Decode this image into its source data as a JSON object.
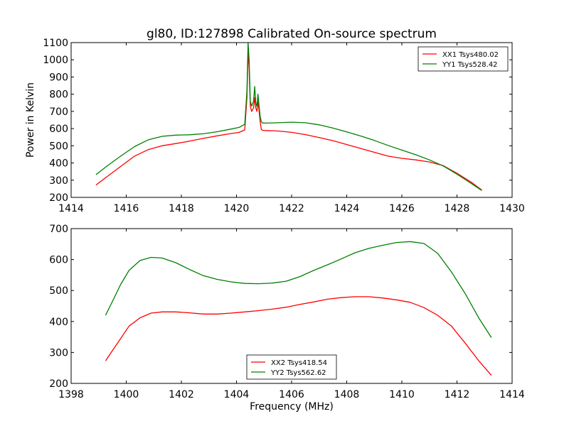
{
  "chart_data": [
    {
      "type": "line",
      "title": "gl80, ID:127898 Calibrated On-source spectrum",
      "xlabel": "",
      "ylabel": "Power in Kelvin",
      "xlim": [
        1414,
        1430
      ],
      "ylim": [
        200,
        1100
      ],
      "xticks": [
        1414,
        1416,
        1418,
        1420,
        1422,
        1424,
        1426,
        1428,
        1430
      ],
      "yticks": [
        200,
        300,
        400,
        500,
        600,
        700,
        800,
        900,
        1000,
        1100
      ],
      "grid": false,
      "legend_position": "top-right",
      "series": [
        {
          "name": "XX1 Tsys480.02",
          "color": "#ff0000",
          "x": [
            1414.9,
            1415.3,
            1415.8,
            1416.3,
            1416.8,
            1417.3,
            1417.8,
            1418.3,
            1418.8,
            1419.3,
            1419.8,
            1420.1,
            1420.3,
            1420.38,
            1420.42,
            1420.46,
            1420.5,
            1420.55,
            1420.62,
            1420.66,
            1420.7,
            1420.74,
            1420.78,
            1420.82,
            1420.86,
            1420.9,
            1420.95,
            1421.0,
            1421.5,
            1422.0,
            1422.5,
            1423.0,
            1423.5,
            1424.0,
            1424.5,
            1425.0,
            1425.5,
            1426.0,
            1426.5,
            1427.0,
            1427.5,
            1428.0,
            1428.5,
            1428.9
          ],
          "values": [
            272,
            320,
            380,
            440,
            478,
            500,
            513,
            527,
            543,
            558,
            571,
            578,
            592,
            780,
            1050,
            950,
            730,
            700,
            720,
            780,
            720,
            700,
            760,
            700,
            640,
            595,
            590,
            589,
            586,
            578,
            565,
            548,
            530,
            507,
            485,
            462,
            440,
            427,
            418,
            406,
            385,
            340,
            290,
            243
          ]
        },
        {
          "name": "YY1 Tsys528.42",
          "color": "#008000",
          "x": [
            1414.9,
            1415.3,
            1415.8,
            1416.3,
            1416.8,
            1417.3,
            1417.8,
            1418.3,
            1418.8,
            1419.3,
            1419.8,
            1420.1,
            1420.3,
            1420.38,
            1420.42,
            1420.46,
            1420.5,
            1420.55,
            1420.62,
            1420.66,
            1420.7,
            1420.74,
            1420.78,
            1420.82,
            1420.86,
            1420.9,
            1420.95,
            1421.0,
            1421.5,
            1422.0,
            1422.5,
            1423.0,
            1423.5,
            1424.0,
            1424.5,
            1425.0,
            1425.5,
            1426.0,
            1426.5,
            1427.0,
            1427.5,
            1428.0,
            1428.5,
            1428.9
          ],
          "values": [
            332,
            382,
            440,
            495,
            535,
            555,
            562,
            564,
            570,
            582,
            597,
            607,
            625,
            820,
            1100,
            1000,
            760,
            730,
            760,
            845,
            750,
            730,
            800,
            730,
            670,
            640,
            632,
            632,
            634,
            637,
            634,
            622,
            603,
            581,
            557,
            531,
            502,
            475,
            448,
            418,
            383,
            335,
            283,
            240
          ]
        }
      ]
    },
    {
      "type": "line",
      "title": "",
      "xlabel": "Frequency (MHz)",
      "ylabel": "",
      "xlim": [
        1398,
        1414
      ],
      "ylim": [
        200,
        700
      ],
      "xticks": [
        1398,
        1400,
        1402,
        1404,
        1406,
        1408,
        1410,
        1412,
        1414
      ],
      "yticks": [
        200,
        300,
        400,
        500,
        600,
        700
      ],
      "grid": false,
      "legend_position": "bottom-center",
      "series": [
        {
          "name": "XX2 Tsys418.54",
          "color": "#ff0000",
          "x": [
            1399.25,
            1399.5,
            1399.8,
            1400.1,
            1400.5,
            1400.9,
            1401.3,
            1401.8,
            1402.3,
            1402.8,
            1403.3,
            1403.8,
            1404.3,
            1404.8,
            1405.3,
            1405.8,
            1406.3,
            1406.8,
            1407.3,
            1407.8,
            1408.3,
            1408.8,
            1409.3,
            1409.8,
            1410.3,
            1410.8,
            1411.3,
            1411.8,
            1412.3,
            1412.8,
            1413.25
          ],
          "values": [
            273,
            306,
            345,
            385,
            412,
            427,
            431,
            431,
            428,
            424,
            424,
            427,
            431,
            435,
            440,
            446,
            455,
            463,
            472,
            477,
            480,
            480,
            476,
            470,
            462,
            445,
            420,
            385,
            330,
            272,
            226
          ]
        },
        {
          "name": "YY2 Tsys562.62",
          "color": "#008000",
          "x": [
            1399.25,
            1399.5,
            1399.8,
            1400.1,
            1400.5,
            1400.9,
            1401.3,
            1401.8,
            1402.3,
            1402.8,
            1403.3,
            1403.8,
            1404.3,
            1404.8,
            1405.3,
            1405.8,
            1406.3,
            1406.8,
            1407.3,
            1407.8,
            1408.3,
            1408.8,
            1409.3,
            1409.8,
            1410.3,
            1410.8,
            1411.3,
            1411.8,
            1412.3,
            1412.8,
            1413.25
          ],
          "values": [
            420,
            465,
            520,
            565,
            597,
            607,
            605,
            590,
            568,
            548,
            536,
            528,
            523,
            522,
            524,
            530,
            545,
            565,
            583,
            602,
            622,
            636,
            646,
            655,
            658,
            652,
            620,
            560,
            490,
            410,
            348
          ]
        }
      ]
    }
  ]
}
